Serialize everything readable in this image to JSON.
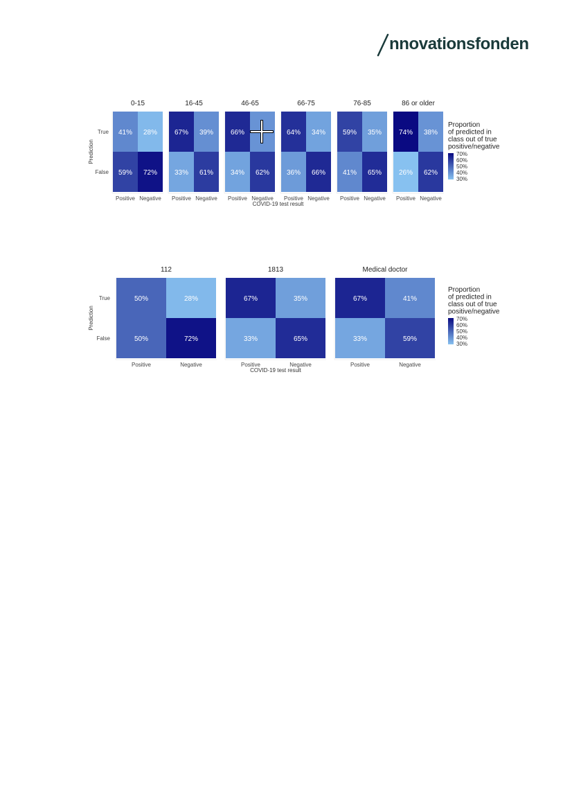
{
  "header": {
    "logo_text": "nnovationsfonden"
  },
  "chart_data": [
    {
      "type": "heatmap",
      "facets": [
        "0-15",
        "16-45",
        "46-65",
        "66-75",
        "76-85",
        "86 or older"
      ],
      "x_categories": [
        "Positive",
        "Negative"
      ],
      "y_categories": [
        "True",
        "False"
      ],
      "values": [
        [
          [
            41,
            28
          ],
          [
            59,
            72
          ]
        ],
        [
          [
            67,
            39
          ],
          [
            33,
            61
          ]
        ],
        [
          [
            66,
            null
          ],
          [
            34,
            62
          ]
        ],
        [
          [
            64,
            34
          ],
          [
            36,
            66
          ]
        ],
        [
          [
            59,
            35
          ],
          [
            41,
            65
          ]
        ],
        [
          [
            74,
            38
          ],
          [
            26,
            62
          ]
        ]
      ],
      "labels": [
        [
          [
            "41%",
            "28%"
          ],
          [
            "59%",
            "72%"
          ]
        ],
        [
          [
            "67%",
            "39%"
          ],
          [
            "33%",
            "61%"
          ]
        ],
        [
          [
            "66%",
            ""
          ],
          [
            "34%",
            "62%"
          ]
        ],
        [
          [
            "64%",
            "34%"
          ],
          [
            "36%",
            "66%"
          ]
        ],
        [
          [
            "59%",
            "35%"
          ],
          [
            "41%",
            "65%"
          ]
        ],
        [
          [
            "74%",
            "38%"
          ],
          [
            "26%",
            "62%"
          ]
        ]
      ],
      "xlabel": "COVID-19 test result",
      "ylabel": "Prediction",
      "legend": {
        "title": [
          "Proportion",
          "of predicted in",
          " class out of true",
          "positive/negative"
        ],
        "ticks": [
          "70%",
          "60%",
          "50%",
          "40%",
          "30%"
        ],
        "placement": "right"
      },
      "color_scale": {
        "low": 26,
        "high": 74,
        "low_color": "#87c1f0",
        "high_color": "#0a0a82"
      }
    },
    {
      "type": "heatmap",
      "facets": [
        "112",
        "1813",
        "Medical doctor"
      ],
      "x_categories": [
        "Positive",
        "Negative"
      ],
      "y_categories": [
        "True",
        "False"
      ],
      "values": [
        [
          [
            50,
            28
          ],
          [
            50,
            72
          ]
        ],
        [
          [
            67,
            35
          ],
          [
            33,
            65
          ]
        ],
        [
          [
            67,
            41
          ],
          [
            33,
            59
          ]
        ]
      ],
      "labels": [
        [
          [
            "50%",
            "28%"
          ],
          [
            "50%",
            "72%"
          ]
        ],
        [
          [
            "67%",
            "35%"
          ],
          [
            "33%",
            "65%"
          ]
        ],
        [
          [
            "67%",
            "41%"
          ],
          [
            "33%",
            "59%"
          ]
        ]
      ],
      "xlabel": "COVID-19 test result",
      "ylabel": "Prediction",
      "legend": {
        "title": [
          "Proportion",
          "of predicted in",
          " class out of true",
          "positive/negative"
        ],
        "ticks": [
          "70%",
          "60%",
          "50%",
          "40%",
          "30%"
        ],
        "placement": "right"
      },
      "color_scale": {
        "low": 26,
        "high": 74,
        "low_color": "#87c1f0",
        "high_color": "#0a0a82"
      }
    }
  ]
}
